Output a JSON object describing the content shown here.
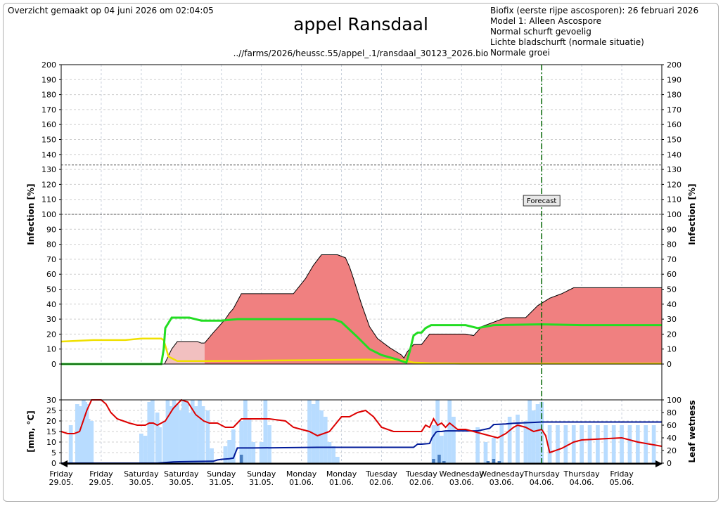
{
  "header": {
    "timestamp": "Overzicht gemaakt op 04 juni 2026 om 02:04:05",
    "title": "appel Ransdaal",
    "filepath": "..//farms/2026/heussc.55/appel_.1/ransdaal_30123_2026.bio",
    "info_lines": [
      "Biofix (eerste rijpe ascosporen):  26 februari 2026",
      "Model 1: Alleen Ascospore",
      "Normal schurft gevoelig",
      "Lichte bladschurft (normale situatie)",
      "Normale groei"
    ]
  },
  "colors": {
    "infection_fill": "#f08080",
    "infection_past_fill": "#f2c0c0",
    "green_line": "#22dd22",
    "yellow_line": "#f0e000",
    "temp_line": "#dd0000",
    "rain_bar_light": "#b8dcff",
    "rain_bar_dark": "#4a7fc1",
    "wetness_line": "#001a99",
    "forecast_line": "#006400"
  },
  "chart_data": [
    {
      "type": "area",
      "ylabel": "Infection [%]",
      "ylim": [
        0,
        200
      ],
      "yticks": [
        0,
        10,
        20,
        30,
        40,
        50,
        60,
        70,
        80,
        90,
        100,
        110,
        120,
        130,
        140,
        150,
        160,
        170,
        180,
        190,
        200
      ],
      "x_unit": "days from 29.05 00:00",
      "xlim": [
        0,
        7.5
      ],
      "reference_lines": [
        100,
        133
      ],
      "forecast_label": "Forecast",
      "forecast_x": 6.0,
      "x_tick_labels": [
        {
          "day": "Friday",
          "date": "29.05."
        },
        {
          "day": "Friday",
          "date": "29.05."
        },
        {
          "day": "Saturday",
          "date": "30.05."
        },
        {
          "day": "Saturday",
          "date": "30.05."
        },
        {
          "day": "Sunday",
          "date": "31.05."
        },
        {
          "day": "Sunday",
          "date": "31.05."
        },
        {
          "day": "Monday",
          "date": "01.06."
        },
        {
          "day": "Monday",
          "date": "01.06."
        },
        {
          "day": "Tuesday",
          "date": "02.06."
        },
        {
          "day": "Tuesday",
          "date": "02.06."
        },
        {
          "day": "Wednesday",
          "date": "03.06."
        },
        {
          "day": "Wednesday",
          "date": "03.06."
        },
        {
          "day": "Thursday",
          "date": "04.06."
        },
        {
          "day": "Thursday",
          "date": "04.06."
        },
        {
          "day": "Friday",
          "date": "05.06."
        }
      ],
      "series": [
        {
          "role": "infection_past",
          "x": [
            0,
            1.28,
            1.29,
            1.38,
            1.45,
            1.7,
            1.75,
            1.79
          ],
          "y": [
            0,
            0,
            0,
            10,
            15,
            15,
            14,
            14
          ]
        },
        {
          "role": "infection",
          "x": [
            1.79,
            1.9,
            2.05,
            2.1,
            2.15,
            2.25,
            2.45,
            2.7,
            2.9,
            3.05,
            3.15,
            3.25,
            3.45,
            3.55,
            3.6,
            3.65,
            3.75,
            3.85,
            3.95,
            4.1,
            4.25,
            4.28,
            4.32,
            4.4,
            4.5,
            4.6,
            4.9,
            5.05,
            5.15,
            5.25,
            5.55,
            5.7,
            5.8,
            5.95,
            6.1,
            6.25,
            6.4,
            7.0,
            7.5
          ],
          "y": [
            14,
            21,
            30,
            34,
            37,
            47,
            47,
            47,
            47,
            57,
            66,
            73,
            73,
            71,
            65,
            57,
            40,
            25,
            17,
            11,
            6,
            4,
            8,
            13,
            13,
            20,
            20,
            20,
            19,
            25,
            31,
            31,
            31,
            39,
            44,
            47,
            51,
            51,
            51
          ]
        },
        {
          "role": "green",
          "x": [
            0,
            1.25,
            1.28,
            1.3,
            1.38,
            1.6,
            1.75,
            2.0,
            2.2,
            2.5,
            3.4,
            3.5,
            3.7,
            3.85,
            4.0,
            4.2,
            4.25,
            4.31,
            4.35,
            4.4,
            4.45,
            4.5,
            4.55,
            4.62,
            4.7,
            5.05,
            5.2,
            5.4,
            6.0,
            6.5,
            7.5
          ],
          "y": [
            0,
            0,
            10,
            24,
            31,
            31,
            29,
            29,
            30,
            30,
            30,
            28,
            18,
            10,
            6,
            3,
            2,
            1,
            8,
            19,
            21,
            21,
            24,
            26,
            26,
            26,
            24,
            26,
            26.5,
            26,
            26
          ]
        },
        {
          "role": "yellow",
          "x": [
            0,
            0.4,
            0.8,
            1.0,
            1.25,
            1.28,
            1.34,
            1.45,
            1.8,
            2.3,
            3.0,
            3.8,
            4.25,
            4.4,
            4.6,
            5.0,
            6.0,
            7.5
          ],
          "y": [
            15,
            16,
            16,
            17,
            17,
            16,
            5,
            2,
            2,
            2.2,
            2.5,
            3,
            2.7,
            1,
            0.5,
            0.3,
            0.3,
            0.3
          ]
        }
      ]
    },
    {
      "type": "line",
      "ylabel": "[mm, °C]",
      "ylabel_right": "Leaf wetness",
      "ylim": [
        0,
        30
      ],
      "yticks": [
        0,
        5,
        10,
        15,
        20,
        25,
        30
      ],
      "ylim_right": [
        0,
        100
      ],
      "yticks_right": [
        0,
        20,
        40,
        60,
        80,
        100
      ],
      "xlim": [
        0,
        7.5
      ],
      "series": [
        {
          "role": "temperature",
          "x": [
            0,
            0.08,
            0.16,
            0.23,
            0.32,
            0.38,
            0.45,
            0.5,
            0.56,
            0.62,
            0.7,
            0.85,
            0.95,
            1.05,
            1.1,
            1.15,
            1.2,
            1.25,
            1.3,
            1.35,
            1.4,
            1.5,
            1.58,
            1.68,
            1.78,
            1.85,
            1.95,
            2.05,
            2.15,
            2.2,
            2.25,
            2.4,
            2.6,
            2.8,
            2.9,
            3.0,
            3.1,
            3.2,
            3.35,
            3.5,
            3.6,
            3.7,
            3.8,
            3.9,
            4.0,
            4.15,
            4.35,
            4.5,
            4.55,
            4.6,
            4.65,
            4.7,
            4.75,
            4.8,
            4.85,
            4.95,
            5.05,
            5.25,
            5.35,
            5.45,
            5.55,
            5.65,
            5.7,
            5.8,
            5.9,
            6.0,
            6.05,
            6.1,
            6.25,
            6.4,
            6.5,
            7.0,
            7.2,
            7.5
          ],
          "y": [
            15,
            14,
            14,
            15,
            25,
            30,
            30,
            30,
            28,
            24,
            21,
            19,
            18,
            18,
            19,
            19,
            18,
            19,
            20,
            23,
            26,
            30,
            29,
            23,
            20,
            19,
            19,
            17,
            17,
            19,
            21,
            21,
            21,
            20,
            17,
            16,
            15,
            13,
            15,
            22,
            22,
            24,
            25,
            22,
            17,
            15,
            15,
            15,
            18,
            17,
            21,
            18,
            19,
            17,
            19,
            16,
            16,
            14,
            13,
            12,
            14,
            17,
            18,
            17,
            15,
            16,
            13,
            5,
            7,
            10,
            11,
            12,
            10,
            8
          ]
        },
        {
          "role": "leaf_wetness",
          "x": [
            0,
            1.2,
            1.3,
            1.4,
            1.6,
            1.9,
            1.95,
            2.0,
            2.1,
            2.15,
            2.2,
            2.4,
            3.2,
            3.4,
            3.9,
            4.4,
            4.45,
            4.5,
            4.6,
            4.63,
            4.68,
            4.7,
            4.75,
            4.8,
            5.2,
            5.35,
            5.4,
            5.55,
            5.65,
            6.0,
            6.5,
            7.5
          ],
          "y": [
            0,
            0,
            1,
            2,
            2.5,
            3,
            5,
            6,
            7,
            8,
            24,
            24,
            25,
            25,
            25,
            25,
            30,
            30,
            31,
            40,
            49,
            50,
            50,
            51,
            51,
            55,
            61,
            62,
            63,
            65,
            65,
            65
          ]
        },
        {
          "role": "rain_light",
          "x": [
            0.12,
            0.2,
            0.24,
            0.28,
            0.3,
            0.32,
            0.34,
            0.38,
            1.0,
            1.05,
            1.1,
            1.14,
            1.2,
            1.23,
            1.29,
            1.33,
            1.37,
            1.41,
            1.45,
            1.5,
            1.53,
            1.57,
            1.6,
            1.64,
            1.68,
            1.73,
            1.77,
            1.83,
            1.88,
            2.05,
            2.1,
            2.15,
            2.25,
            2.3,
            2.35,
            2.4,
            2.5,
            2.55,
            2.6,
            3.1,
            3.15,
            3.2,
            3.25,
            3.3,
            3.35,
            3.4,
            3.45,
            4.65,
            4.7,
            4.75,
            4.8,
            4.85,
            4.9,
            5.2,
            5.3,
            5.4,
            5.5,
            5.6,
            5.7,
            5.8,
            5.85,
            5.9,
            5.95,
            6.0,
            6.1,
            6.2,
            6.3,
            6.4,
            6.5,
            6.6,
            6.7,
            6.8,
            6.9,
            7.0,
            7.1,
            7.2,
            7.3,
            7.4
          ],
          "y": [
            18,
            28,
            27,
            30,
            29,
            28,
            21,
            20,
            14,
            13,
            29,
            30,
            24,
            17,
            20,
            30,
            27,
            30,
            28,
            25,
            30,
            29,
            24,
            30,
            27,
            30,
            27,
            25,
            7,
            8,
            11,
            16,
            20,
            30,
            21,
            10,
            10,
            30,
            18,
            30,
            28,
            30,
            25,
            22,
            10,
            8,
            3,
            18,
            30,
            13,
            15,
            30,
            22,
            17,
            10,
            12,
            18,
            22,
            23,
            20,
            30,
            25,
            28,
            29,
            18,
            18,
            18,
            18,
            18,
            18,
            18,
            18,
            18,
            18,
            18,
            18,
            18,
            18
          ],
          "width_days": 0.05
        },
        {
          "role": "rain_dark",
          "x": [
            2.25,
            4.65,
            4.72,
            4.78,
            5.33,
            5.4,
            5.47
          ],
          "y": [
            4,
            2,
            4,
            1,
            1,
            2,
            1
          ],
          "width_days": 0.04
        }
      ]
    }
  ]
}
